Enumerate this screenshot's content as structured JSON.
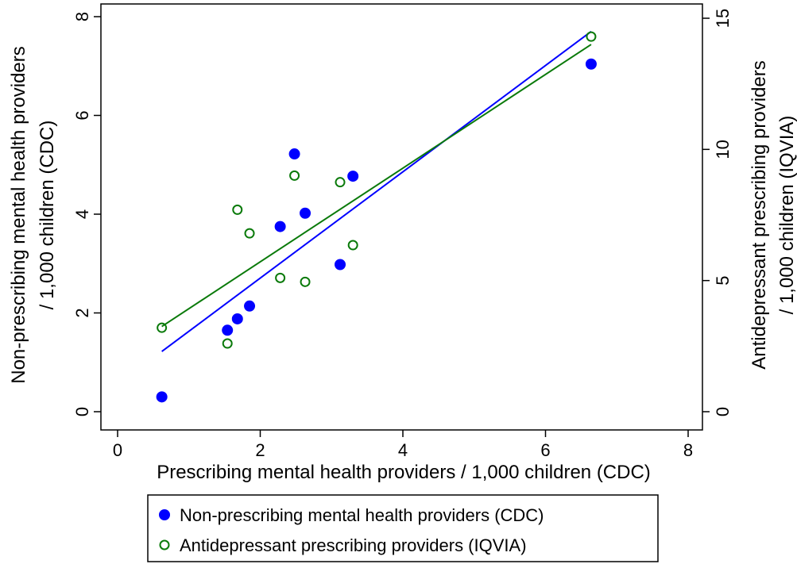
{
  "chart_data": {
    "type": "scatter",
    "x_axis": {
      "label": "Prescribing mental health providers / 1,000 children (CDC)",
      "range": [
        0,
        8
      ],
      "ticks": [
        0,
        2,
        4,
        6,
        8
      ]
    },
    "y_axis_left": {
      "label_line1": "Non-prescribing mental health providers",
      "label_line2": "/ 1,000 children (CDC)",
      "range": [
        0,
        8
      ],
      "ticks": [
        0,
        2,
        4,
        6,
        8
      ]
    },
    "y_axis_right": {
      "label_line1": "Antidepressant prescribing providers",
      "label_line2": "/ 1,000 children (IQVIA)",
      "range": [
        0,
        15
      ],
      "ticks": [
        0,
        5,
        10,
        15
      ]
    },
    "grid": false,
    "legend_position": "bottom",
    "series": [
      {
        "name": "Non-prescribing mental health providers (CDC)",
        "axis": "left",
        "marker": "filled-circle",
        "color": "#0000ff",
        "points": [
          {
            "x": 0.62,
            "y": 0.3
          },
          {
            "x": 1.54,
            "y": 1.65
          },
          {
            "x": 1.68,
            "y": 1.88
          },
          {
            "x": 1.85,
            "y": 2.14
          },
          {
            "x": 2.28,
            "y": 3.75
          },
          {
            "x": 2.48,
            "y": 5.22
          },
          {
            "x": 2.63,
            "y": 4.02
          },
          {
            "x": 3.12,
            "y": 2.98
          },
          {
            "x": 3.3,
            "y": 4.77
          },
          {
            "x": 6.64,
            "y": 7.04
          }
        ],
        "fit": {
          "x": [
            0.62,
            6.64
          ],
          "y": [
            1.22,
            7.7
          ],
          "color": "#0000ff"
        }
      },
      {
        "name": "Antidepressant prescribing providers (IQVIA)",
        "axis": "right",
        "marker": "hollow-circle",
        "color": "#0a7a0a",
        "points": [
          {
            "x": 0.62,
            "y": 3.2
          },
          {
            "x": 1.54,
            "y": 2.6
          },
          {
            "x": 1.68,
            "y": 7.7
          },
          {
            "x": 1.85,
            "y": 6.8
          },
          {
            "x": 2.28,
            "y": 5.1
          },
          {
            "x": 2.48,
            "y": 9.0
          },
          {
            "x": 2.63,
            "y": 4.95
          },
          {
            "x": 3.12,
            "y": 8.75
          },
          {
            "x": 3.3,
            "y": 6.35
          },
          {
            "x": 6.64,
            "y": 14.3
          }
        ],
        "fit": {
          "x": [
            0.62,
            6.64
          ],
          "y": [
            3.25,
            14.0
          ],
          "color": "#0a7a0a"
        }
      }
    ]
  }
}
